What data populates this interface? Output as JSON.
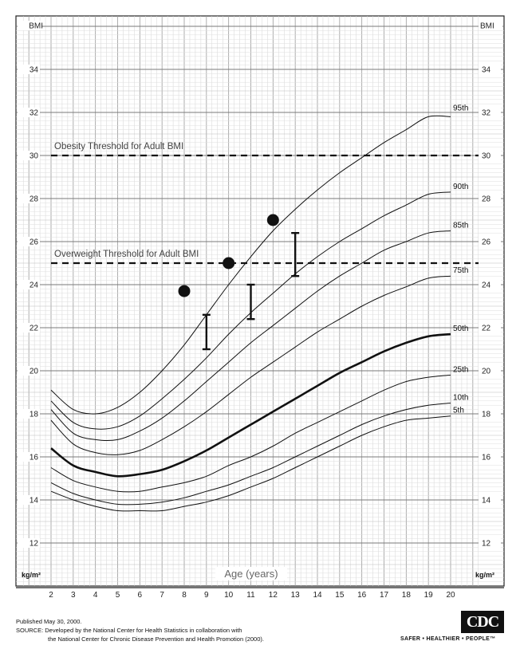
{
  "chart_data": {
    "type": "line",
    "xlabel": "Age (years)",
    "ylabel_tick": "BMI",
    "unit_label": "kg/m²",
    "xlim": [
      2,
      20
    ],
    "ylim": [
      12,
      36
    ],
    "x_ticks": [
      2,
      3,
      4,
      5,
      6,
      7,
      8,
      9,
      10,
      11,
      12,
      13,
      14,
      15,
      16,
      17,
      18,
      19,
      20
    ],
    "y_ticks": [
      12,
      14,
      16,
      18,
      20,
      22,
      24,
      26,
      28,
      30,
      32,
      34
    ],
    "grid": true,
    "series": [
      {
        "name": "95th",
        "x": [
          2,
          3,
          4,
          5,
          6,
          7,
          8,
          9,
          10,
          11,
          12,
          13,
          14,
          15,
          16,
          17,
          18,
          19,
          20
        ],
        "y": [
          19.1,
          18.2,
          18.0,
          18.3,
          19.0,
          20.0,
          21.2,
          22.6,
          24.0,
          25.3,
          26.5,
          27.5,
          28.4,
          29.2,
          29.9,
          30.6,
          31.2,
          31.8,
          31.8
        ]
      },
      {
        "name": "90th",
        "x": [
          2,
          3,
          4,
          5,
          6,
          7,
          8,
          9,
          10,
          11,
          12,
          13,
          14,
          15,
          16,
          17,
          18,
          19,
          20
        ],
        "y": [
          18.6,
          17.6,
          17.3,
          17.4,
          17.9,
          18.7,
          19.6,
          20.6,
          21.7,
          22.7,
          23.6,
          24.5,
          25.3,
          26.0,
          26.6,
          27.2,
          27.7,
          28.2,
          28.3
        ]
      },
      {
        "name": "85th",
        "x": [
          2,
          3,
          4,
          5,
          6,
          7,
          8,
          9,
          10,
          11,
          12,
          13,
          14,
          15,
          16,
          17,
          18,
          19,
          20
        ],
        "y": [
          18.2,
          17.1,
          16.8,
          16.8,
          17.2,
          17.8,
          18.6,
          19.5,
          20.4,
          21.3,
          22.1,
          22.9,
          23.7,
          24.4,
          25.0,
          25.6,
          26.0,
          26.4,
          26.5
        ]
      },
      {
        "name": "75th",
        "x": [
          2,
          3,
          4,
          5,
          6,
          7,
          8,
          9,
          10,
          11,
          12,
          13,
          14,
          15,
          16,
          17,
          18,
          19,
          20
        ],
        "y": [
          17.7,
          16.6,
          16.2,
          16.1,
          16.3,
          16.8,
          17.4,
          18.1,
          18.9,
          19.7,
          20.4,
          21.1,
          21.8,
          22.4,
          23.0,
          23.5,
          23.9,
          24.3,
          24.4
        ]
      },
      {
        "name": "50th",
        "x": [
          2,
          3,
          4,
          5,
          6,
          7,
          8,
          9,
          10,
          11,
          12,
          13,
          14,
          15,
          16,
          17,
          18,
          19,
          20
        ],
        "y": [
          16.4,
          15.6,
          15.3,
          15.1,
          15.2,
          15.4,
          15.8,
          16.3,
          16.9,
          17.5,
          18.1,
          18.7,
          19.3,
          19.9,
          20.4,
          20.9,
          21.3,
          21.6,
          21.7
        ]
      },
      {
        "name": "25th",
        "x": [
          2,
          3,
          4,
          5,
          6,
          7,
          8,
          9,
          10,
          11,
          12,
          13,
          14,
          15,
          16,
          17,
          18,
          19,
          20
        ],
        "y": [
          15.5,
          14.9,
          14.6,
          14.4,
          14.4,
          14.6,
          14.8,
          15.1,
          15.6,
          16.0,
          16.5,
          17.1,
          17.6,
          18.1,
          18.6,
          19.1,
          19.5,
          19.7,
          19.8
        ]
      },
      {
        "name": "10th",
        "x": [
          2,
          3,
          4,
          5,
          6,
          7,
          8,
          9,
          10,
          11,
          12,
          13,
          14,
          15,
          16,
          17,
          18,
          19,
          20
        ],
        "y": [
          14.8,
          14.3,
          14.0,
          13.8,
          13.8,
          13.9,
          14.1,
          14.4,
          14.7,
          15.1,
          15.5,
          16.0,
          16.5,
          17.0,
          17.5,
          17.9,
          18.2,
          18.4,
          18.5
        ]
      },
      {
        "name": "5th",
        "x": [
          2,
          3,
          4,
          5,
          6,
          7,
          8,
          9,
          10,
          11,
          12,
          13,
          14,
          15,
          16,
          17,
          18,
          19,
          20
        ],
        "y": [
          14.4,
          14.0,
          13.7,
          13.5,
          13.5,
          13.5,
          13.7,
          13.9,
          14.2,
          14.6,
          15.0,
          15.5,
          16.0,
          16.5,
          17.0,
          17.4,
          17.7,
          17.8,
          17.9
        ]
      }
    ],
    "thresholds": [
      {
        "label": "Obesity Threshold for Adult BMI",
        "y": 30
      },
      {
        "label": "Overweight Threshold for Adult BMI",
        "y": 25
      }
    ],
    "points": [
      {
        "x": 8,
        "y": 23.7
      },
      {
        "x": 10,
        "y": 25.0
      },
      {
        "x": 12,
        "y": 27.0
      }
    ],
    "ranges": [
      {
        "x": 9,
        "low": 21.0,
        "high": 22.6
      },
      {
        "x": 11,
        "low": 22.4,
        "high": 24.0
      },
      {
        "x": 13,
        "low": 24.4,
        "high": 26.4
      }
    ]
  },
  "footer": {
    "published": "Published May 30, 2000.",
    "source_line1": "SOURCE: Developed by the National Center for Health Statistics in collaboration with",
    "source_line2": "the National Center for Chronic Disease Prevention and Health Promotion (2000)."
  },
  "logo": {
    "text": "CDC",
    "tagline": "SAFER • HEALTHIER • PEOPLE™"
  }
}
